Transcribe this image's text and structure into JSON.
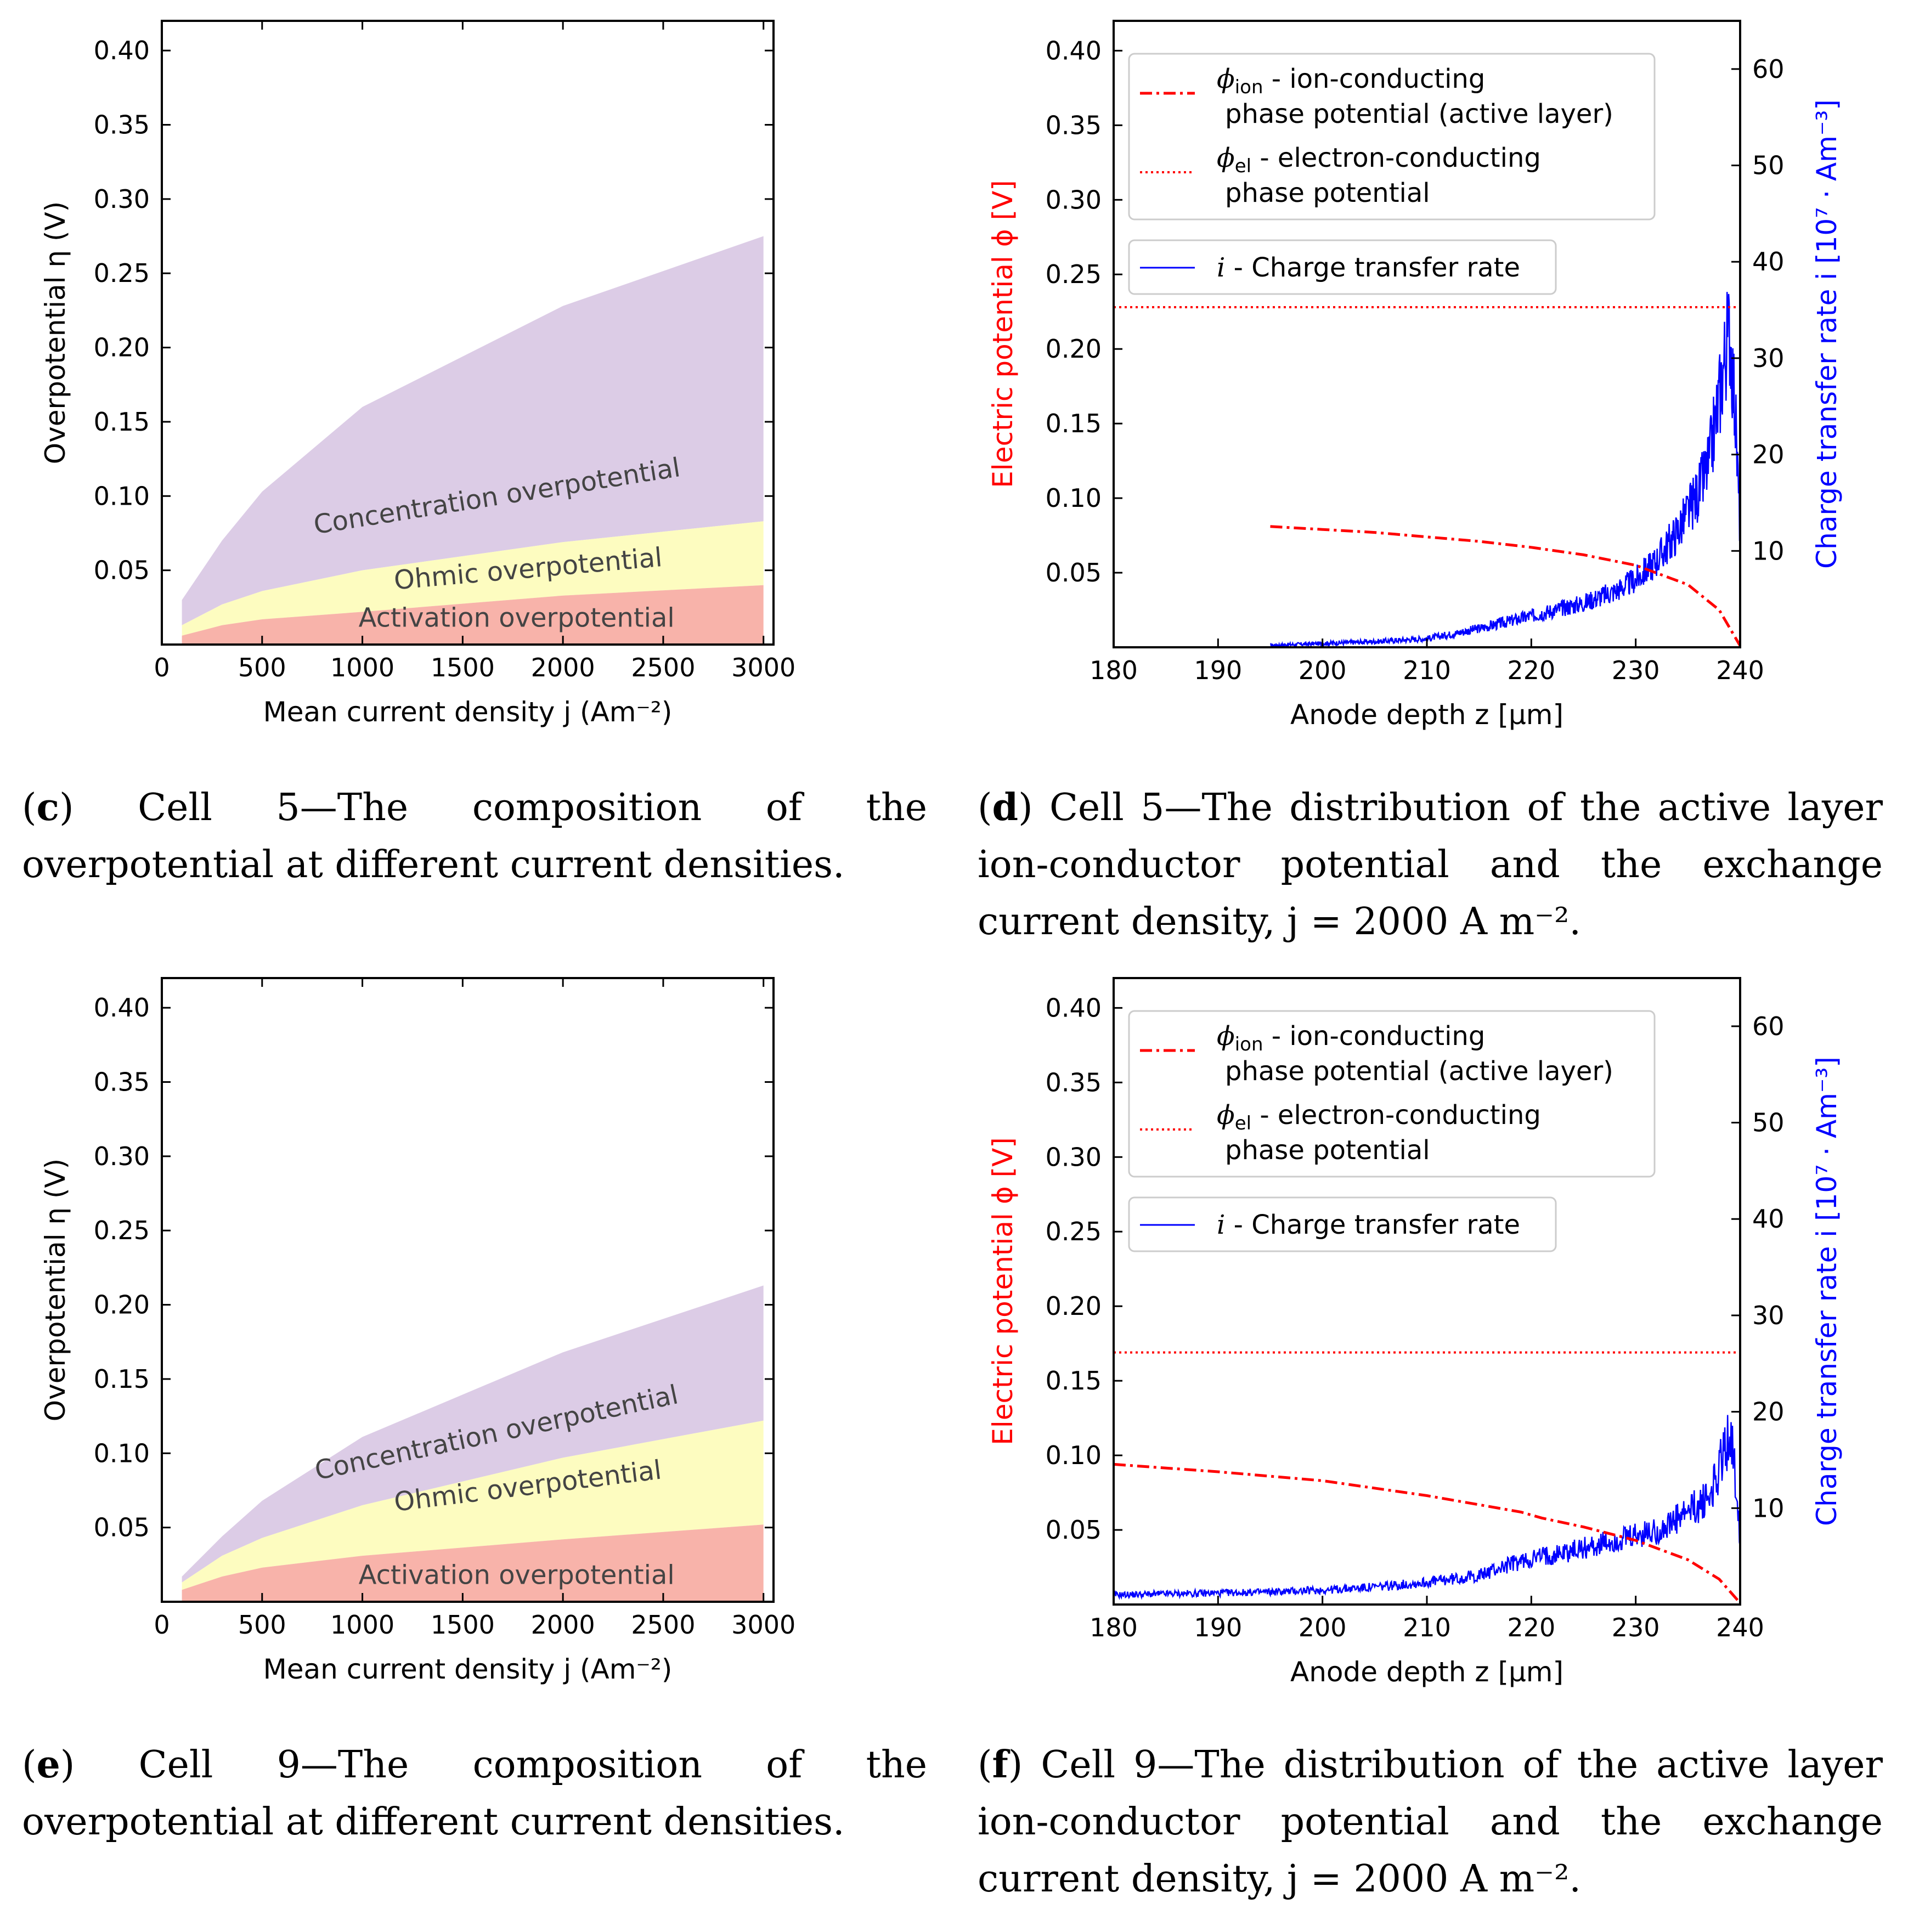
{
  "chart_data": [
    {
      "id": "c",
      "type": "area",
      "title": "",
      "xlabel": "Mean current density j (Am⁻²)",
      "ylabel": "Overpotential η (V)",
      "xlim": [
        0,
        3050
      ],
      "ylim": [
        0,
        0.42
      ],
      "x_ticks": [
        0,
        500,
        1000,
        1500,
        2000,
        2500,
        3000
      ],
      "y_ticks": [
        0.05,
        0.1,
        0.15,
        0.2,
        0.25,
        0.3,
        0.35,
        0.4
      ],
      "x": [
        100,
        300,
        500,
        1000,
        2000,
        3000
      ],
      "series": [
        {
          "name": "Activation overpotential",
          "color": "#f8b3aa",
          "values": [
            0.006,
            0.013,
            0.017,
            0.022,
            0.033,
            0.04
          ]
        },
        {
          "name": "Ohmic overpotential",
          "color": "#fdfcc0",
          "values": [
            0.013,
            0.027,
            0.036,
            0.05,
            0.069,
            0.083
          ]
        },
        {
          "name": "Concentration overpotential",
          "color": "#dccce6",
          "values": [
            0.03,
            0.07,
            0.103,
            0.16,
            0.228,
            0.275
          ]
        }
      ],
      "caption_tag": "c",
      "caption": "Cell 5—The composition of the overpotential at different current densities."
    },
    {
      "id": "d",
      "type": "line",
      "title": "",
      "xlabel": "Anode depth z [μm]",
      "ylabel": "Electric potential ϕ [V]",
      "ylabel_right": "Charge transfer rate i [10⁷ · Am⁻³]",
      "xlim": [
        180,
        240
      ],
      "ylim": [
        0,
        0.42
      ],
      "ylim_right": [
        0,
        65
      ],
      "x_ticks": [
        180,
        190,
        200,
        210,
        220,
        230,
        240
      ],
      "y_ticks": [
        0.05,
        0.1,
        0.15,
        0.2,
        0.25,
        0.3,
        0.35,
        0.4
      ],
      "y_ticks_right": [
        10,
        20,
        30,
        40,
        50,
        60
      ],
      "legend": {
        "phi_ion_sub": "ion",
        "phi_ion_line1": " - ion-conducting",
        "phi_ion_line2": "phase potential (active layer)",
        "phi_el_sub": "el",
        "phi_el_line1": " - electron-conducting",
        "phi_el_line2": "phase potential",
        "i_label": " - Charge transfer rate"
      },
      "phi_el": 0.228,
      "phi_ion": {
        "x": [
          195,
          200,
          205,
          210,
          215,
          220,
          225,
          230,
          235,
          238,
          240
        ],
        "y": [
          0.081,
          0.079,
          0.077,
          0.074,
          0.071,
          0.067,
          0.062,
          0.055,
          0.042,
          0.025,
          0.001
        ]
      },
      "charge_rate": {
        "x_start": 195,
        "x_end": 240,
        "x": [
          195,
          200,
          205,
          210,
          213,
          216,
          219,
          222,
          225,
          228,
          230,
          232,
          234,
          236,
          237,
          238,
          238.5,
          239,
          239.5,
          240
        ],
        "y": [
          0.2,
          0.4,
          0.6,
          0.9,
          1.5,
          2.2,
          3.0,
          3.8,
          4.6,
          5.8,
          7,
          9,
          12,
          16,
          19,
          26,
          30,
          33,
          25,
          12
        ]
      },
      "caption_tag": "d",
      "caption": "Cell 5—The distribution of the active layer ion-conductor potential and the exchange current density, j = 2000 A m⁻²."
    },
    {
      "id": "e",
      "type": "area",
      "title": "",
      "xlabel": "Mean current density j (Am⁻²)",
      "ylabel": "Overpotential η (V)",
      "xlim": [
        0,
        3050
      ],
      "ylim": [
        0,
        0.42
      ],
      "x_ticks": [
        0,
        500,
        1000,
        1500,
        2000,
        2500,
        3000
      ],
      "y_ticks": [
        0.05,
        0.1,
        0.15,
        0.2,
        0.25,
        0.3,
        0.35,
        0.4
      ],
      "x": [
        100,
        300,
        500,
        1000,
        2000,
        3000
      ],
      "series": [
        {
          "name": "Activation overpotential",
          "color": "#f8b3aa",
          "values": [
            0.008,
            0.017,
            0.023,
            0.031,
            0.042,
            0.052
          ]
        },
        {
          "name": "Ohmic overpotential",
          "color": "#fdfcc0",
          "values": [
            0.013,
            0.031,
            0.043,
            0.065,
            0.097,
            0.122
          ]
        },
        {
          "name": "Concentration overpotential",
          "color": "#dccce6",
          "values": [
            0.017,
            0.044,
            0.068,
            0.111,
            0.168,
            0.213
          ]
        }
      ],
      "caption_tag": "e",
      "caption": "Cell 9—The composition of the overpotential at different current densities."
    },
    {
      "id": "f",
      "type": "line",
      "title": "",
      "xlabel": "Anode depth z [μm]",
      "ylabel": "Electric potential ϕ [V]",
      "ylabel_right": "Charge transfer rate i [10⁷ · Am⁻³]",
      "xlim": [
        180,
        240
      ],
      "ylim": [
        0,
        0.42
      ],
      "ylim_right": [
        0,
        65
      ],
      "x_ticks": [
        180,
        190,
        200,
        210,
        220,
        230,
        240
      ],
      "y_ticks": [
        0.05,
        0.1,
        0.15,
        0.2,
        0.25,
        0.3,
        0.35,
        0.4
      ],
      "y_ticks_right": [
        10,
        20,
        30,
        40,
        50,
        60
      ],
      "legend": {
        "phi_ion_sub": "ion",
        "phi_ion_line1": " - ion-conducting",
        "phi_ion_line2": "phase potential (active layer)",
        "phi_el_sub": "el",
        "phi_el_line1": " - electron-conducting",
        "phi_el_line2": "phase potential",
        "i_label": " - Charge transfer rate"
      },
      "phi_el": 0.169,
      "phi_ion": {
        "x": [
          180,
          190,
          200,
          210,
          219,
          221,
          225,
          230,
          235,
          238,
          240
        ],
        "y": [
          0.094,
          0.089,
          0.083,
          0.073,
          0.062,
          0.058,
          0.052,
          0.043,
          0.03,
          0.017,
          0.001
        ]
      },
      "charge_rate": {
        "x_start": 180,
        "x_end": 240,
        "x": [
          180,
          185,
          190,
          195,
          200,
          205,
          210,
          215,
          218,
          221,
          224,
          227,
          230,
          233,
          235,
          237,
          238,
          239,
          239.5,
          240
        ],
        "y": [
          1.0,
          1.1,
          1.2,
          1.3,
          1.5,
          1.8,
          2.3,
          3.0,
          4.2,
          5.0,
          5.6,
          6.3,
          7.0,
          8.0,
          9.5,
          11,
          14,
          18,
          14,
          7
        ]
      },
      "caption_tag": "f",
      "caption": "Cell 9—The distribution of the active layer ion-conductor potential and the exchange current density, j = 2000 A m⁻²."
    }
  ]
}
